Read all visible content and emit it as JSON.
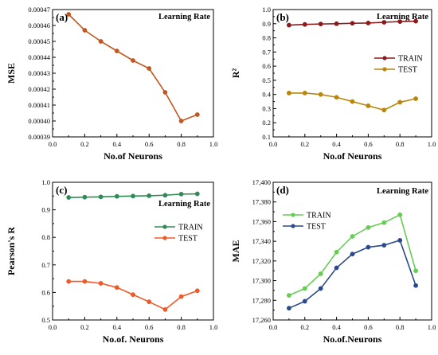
{
  "chart_data": [
    {
      "type": "line",
      "panel_label": "(a)",
      "title": "Learning Rate",
      "xlabel": "No.of Neurons",
      "ylabel": "MSE",
      "xlim": [
        0.0,
        1.0
      ],
      "ylim": [
        0.00039,
        0.00047
      ],
      "xticks": [
        "0.0",
        "0.2",
        "0.4",
        "0.6",
        "0.8",
        "1.0"
      ],
      "yticks": [
        "0.00039",
        "0.00040",
        "0.00041",
        "0.00042",
        "0.00043",
        "0.00044",
        "0.00045",
        "0.00046",
        "0.00047"
      ],
      "legend": "none",
      "x": [
        0.1,
        0.2,
        0.3,
        0.4,
        0.5,
        0.6,
        0.7,
        0.8,
        0.9
      ],
      "series": [
        {
          "name": "",
          "color": "#c0581f",
          "values": [
            0.000467,
            0.000457,
            0.00045,
            0.000444,
            0.000438,
            0.000433,
            0.000418,
            0.0004,
            0.000404
          ]
        }
      ]
    },
    {
      "type": "line",
      "panel_label": "(b)",
      "title": "Learning Rate",
      "xlabel": "No.of Neurons",
      "ylabel": "R²",
      "xlim": [
        0.0,
        1.0
      ],
      "ylim": [
        0.1,
        1.0
      ],
      "xticks": [
        "0.0",
        "0.2",
        "0.4",
        "0.6",
        "0.8",
        "1.0"
      ],
      "yticks": [
        "0.1",
        "0.2",
        "0.3",
        "0.4",
        "0.5",
        "0.6",
        "0.7",
        "0.8",
        "0.9",
        "1.0"
      ],
      "legend": "right",
      "x": [
        0.1,
        0.2,
        0.3,
        0.4,
        0.5,
        0.6,
        0.7,
        0.8,
        0.9
      ],
      "series": [
        {
          "name": "TRAIN",
          "color": "#8b1a1a",
          "values": [
            0.89,
            0.895,
            0.898,
            0.9,
            0.903,
            0.905,
            0.91,
            0.915,
            0.918
          ]
        },
        {
          "name": "TEST",
          "color": "#b8860b",
          "values": [
            0.41,
            0.41,
            0.4,
            0.38,
            0.35,
            0.32,
            0.29,
            0.345,
            0.37
          ]
        }
      ]
    },
    {
      "type": "line",
      "panel_label": "(c)",
      "title": "Learning Rate",
      "xlabel": "No.of. Neurons",
      "ylabel": "Pearson's R",
      "xlim": [
        0.0,
        1.0
      ],
      "ylim": [
        0.5,
        1.0
      ],
      "xticks": [
        "0.0",
        "0.2",
        "0.4",
        "0.6",
        "0.8",
        "1.0"
      ],
      "yticks": [
        "0.5",
        "0.6",
        "0.7",
        "0.8",
        "0.9",
        "1.0"
      ],
      "legend": "right",
      "x": [
        0.1,
        0.2,
        0.3,
        0.4,
        0.5,
        0.6,
        0.7,
        0.8,
        0.9
      ],
      "series": [
        {
          "name": "TRAIN",
          "color": "#2e8b57",
          "values": [
            0.945,
            0.946,
            0.947,
            0.949,
            0.95,
            0.951,
            0.953,
            0.957,
            0.958
          ]
        },
        {
          "name": "TEST",
          "color": "#f05a28",
          "values": [
            0.64,
            0.64,
            0.633,
            0.618,
            0.592,
            0.566,
            0.538,
            0.585,
            0.606
          ]
        }
      ]
    },
    {
      "type": "line",
      "panel_label": "(d)",
      "title": "Learning Rate",
      "xlabel": "No.of.Neurons",
      "ylabel": "MAE",
      "xlim": [
        0.0,
        1.0
      ],
      "ylim": [
        17260,
        17400
      ],
      "xticks": [
        "0.0",
        "0.2",
        "0.4",
        "0.6",
        "0.8",
        "1.0"
      ],
      "yticks": [
        "17,260",
        "17,280",
        "17,300",
        "17,320",
        "17,340",
        "17,360",
        "17,380",
        "17,400"
      ],
      "legend": "top-left",
      "x": [
        0.1,
        0.2,
        0.3,
        0.4,
        0.5,
        0.6,
        0.7,
        0.8,
        0.9
      ],
      "series": [
        {
          "name": "TRAIN",
          "color": "#66cc55",
          "values": [
            17285,
            17292,
            17307,
            17329,
            17345,
            17354,
            17359,
            17367,
            17310
          ]
        },
        {
          "name": "TEST",
          "color": "#2b4a8a",
          "values": [
            17272,
            17279,
            17292,
            17313,
            17327,
            17334,
            17336,
            17341,
            17295
          ]
        }
      ]
    }
  ]
}
